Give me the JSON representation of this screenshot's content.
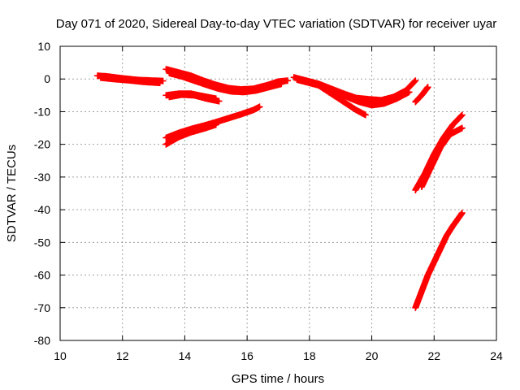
{
  "chart_data": {
    "type": "scatter",
    "title": "Day 071 of 2020, Sidereal Day-to-day VTEC variation (SDTVAR) for receiver uyar",
    "xlabel": "GPS time / hours",
    "ylabel": "SDTVAR / TECUs",
    "xlim": [
      10,
      24
    ],
    "ylim": [
      -80,
      10
    ],
    "xticks": [
      "10",
      "12",
      "14",
      "16",
      "18",
      "20",
      "22",
      "24"
    ],
    "yticks": [
      "10",
      "0",
      "-10",
      "-20",
      "-30",
      "-40",
      "-50",
      "-60",
      "-70",
      "-80"
    ],
    "grid": true,
    "marker": "+",
    "color": "#ff0000",
    "series": [
      {
        "x": [
          11.2,
          11.5,
          12.0,
          12.5,
          13.0,
          13.3
        ],
        "y": [
          1,
          0.8,
          0.2,
          -0.3,
          -0.5,
          -0.6
        ]
      },
      {
        "x": [
          11.3,
          11.7,
          12.2,
          12.7,
          13.2
        ],
        "y": [
          0.4,
          0.0,
          -0.4,
          -0.9,
          -1.2
        ]
      },
      {
        "x": [
          13.4,
          13.8,
          14.2,
          14.6,
          15.0,
          15.4,
          15.8,
          16.2,
          16.6,
          17.0,
          17.3
        ],
        "y": [
          3,
          2,
          1,
          -0.5,
          -1.8,
          -2.8,
          -3.2,
          -3,
          -2,
          -0.8,
          -0.5
        ]
      },
      {
        "x": [
          13.5,
          13.9,
          14.3,
          14.7,
          15.1,
          15.5,
          15.9,
          16.3,
          16.7,
          17.1
        ],
        "y": [
          1.8,
          0.8,
          -0.5,
          -1.8,
          -3,
          -3.8,
          -4,
          -3.5,
          -2.5,
          -1.5
        ]
      },
      {
        "x": [
          13.4,
          13.8,
          14.2,
          14.6,
          15.0
        ],
        "y": [
          -5,
          -4.5,
          -4.5,
          -5.3,
          -6
        ]
      },
      {
        "x": [
          13.5,
          13.9,
          14.3,
          14.7,
          15.1
        ],
        "y": [
          -5.5,
          -4.8,
          -5.0,
          -6.0,
          -6.8
        ]
      },
      {
        "x": [
          13.4,
          13.8,
          14.2,
          14.6,
          15.0,
          15.4,
          15.8,
          16.2,
          16.4
        ],
        "y": [
          -18,
          -16.5,
          -15.3,
          -14.3,
          -13.2,
          -12,
          -10.8,
          -9.5,
          -8.5
        ]
      },
      {
        "x": [
          13.4,
          13.8,
          14.2,
          14.6,
          15.0
        ],
        "y": [
          -20,
          -17.8,
          -16.3,
          -15.2,
          -14
        ]
      },
      {
        "x": [
          17.5,
          17.9,
          18.3,
          18.7,
          19.1,
          19.5,
          19.9,
          20.3,
          20.7,
          21.1,
          21.4
        ],
        "y": [
          0.5,
          -0.5,
          -1.5,
          -3,
          -4.5,
          -5.8,
          -6.2,
          -6.5,
          -5.5,
          -3.5,
          -0.5
        ]
      },
      {
        "x": [
          17.6,
          18.0,
          18.4,
          18.8,
          19.2,
          19.6,
          20.0,
          20.4,
          20.8,
          21.2
        ],
        "y": [
          -0.2,
          -1.2,
          -2.2,
          -3.8,
          -5.5,
          -7.0,
          -8.0,
          -7.5,
          -6.0,
          -4.0
        ]
      },
      {
        "x": [
          18.3,
          18.7,
          19.1,
          19.5,
          19.8
        ],
        "y": [
          -2,
          -4.5,
          -7,
          -9.5,
          -11
        ]
      },
      {
        "x": [
          21.4,
          21.6,
          21.8
        ],
        "y": [
          -7,
          -5,
          -2.5
        ]
      },
      {
        "x": [
          21.4,
          21.7,
          22.0,
          22.3,
          22.6,
          22.9
        ],
        "y": [
          -34,
          -29,
          -23,
          -18,
          -14,
          -11
        ]
      },
      {
        "x": [
          21.6,
          21.9,
          22.2,
          22.5,
          22.9
        ],
        "y": [
          -33,
          -27,
          -21,
          -17,
          -15
        ]
      },
      {
        "x": [
          21.4,
          21.6,
          21.8,
          22.0,
          22.2,
          22.4,
          22.6,
          22.9
        ],
        "y": [
          -70,
          -65,
          -60,
          -56,
          -52,
          -48,
          -45,
          -41
        ]
      }
    ]
  }
}
